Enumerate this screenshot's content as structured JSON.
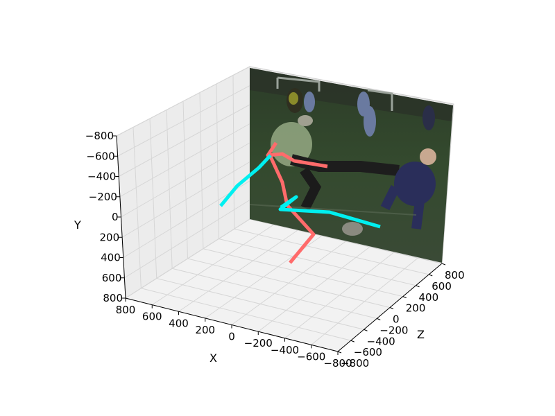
{
  "chart_data": {
    "type": "line3d",
    "projection": "3d",
    "title": "",
    "background_image": "soccer-photo",
    "axes": {
      "x": {
        "label": "X",
        "ticks": [
          "800",
          "600",
          "400",
          "200",
          "0",
          "−200",
          "−400",
          "−600",
          "−800"
        ]
      },
      "y": {
        "label": "Y",
        "ticks": [
          "−800",
          "−600",
          "−400",
          "−200",
          "0",
          "200",
          "400",
          "600",
          "800"
        ]
      },
      "z": {
        "label": "Z",
        "ticks": [
          "−800",
          "−600",
          "−400",
          "−200",
          "0",
          "200",
          "400",
          "600",
          "800"
        ]
      }
    },
    "grid": true,
    "colors": {
      "right_side": "#ff6b6b",
      "left_side": "#00f0f0",
      "pane": "#ececec"
    },
    "series": [
      {
        "side": "right",
        "color": "#ff6b6b",
        "segments": [
          [
            [
              398,
              206
            ],
            [
              386,
              224
            ],
            [
              407,
              222
            ],
            [
              424,
              232
            ],
            [
              472,
              240
            ]
          ],
          [
            [
              390,
              226
            ],
            [
              407,
              263
            ],
            [
              414,
              296
            ],
            [
              452,
              338
            ],
            [
              418,
              379
            ]
          ]
        ]
      },
      {
        "side": "left",
        "color": "#00f0f0",
        "segments": [
          [
            [
              318,
              297
            ],
            [
              342,
              268
            ],
            [
              373,
              242
            ],
            [
              390,
              224
            ]
          ],
          [
            [
              405,
              299
            ],
            [
              427,
              284
            ],
            [
              404,
              302
            ],
            [
              475,
              306
            ],
            [
              548,
              327
            ]
          ]
        ]
      }
    ]
  }
}
